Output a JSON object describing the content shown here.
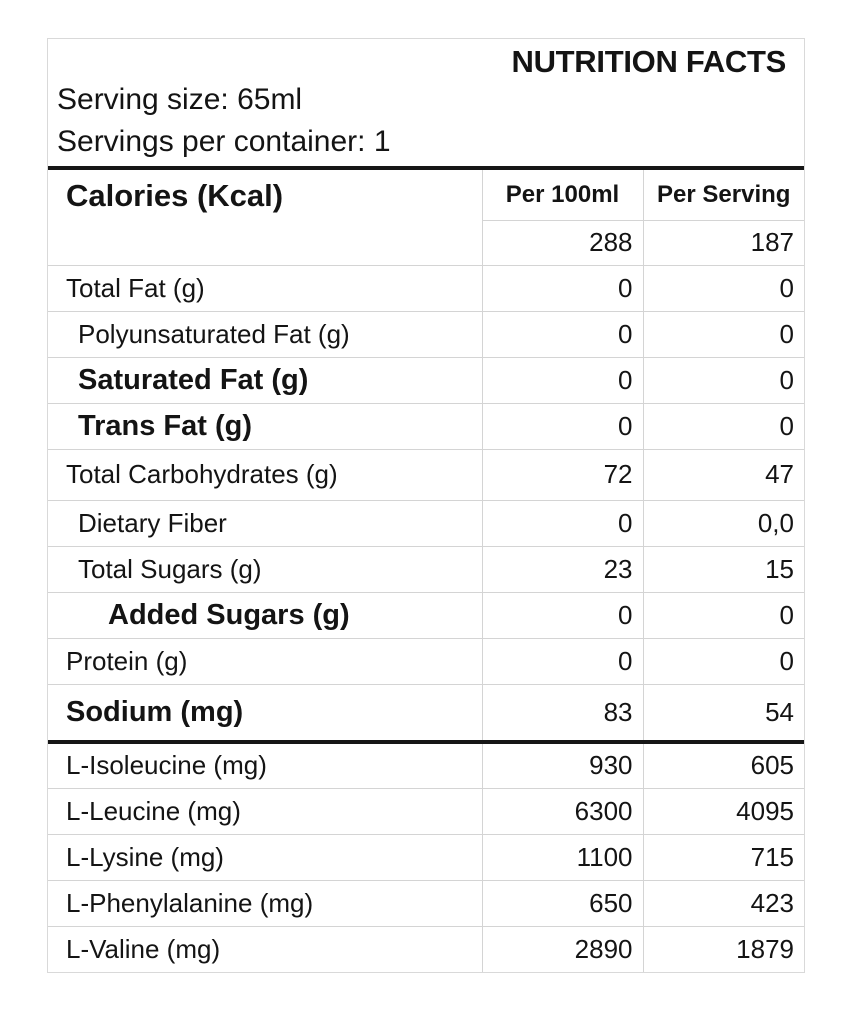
{
  "label_card": {
    "title": "NUTRITION FACTS",
    "serving_size": "Serving size: 65ml",
    "servings_per_container": "Servings per container: 1"
  },
  "table": {
    "calories": {
      "row_label": "Calories (Kcal)",
      "columns": [
        "Per 100ml",
        "Per Serving"
      ],
      "values": [
        "288",
        "187"
      ]
    },
    "rows": [
      {
        "label": "Total Fat (g)",
        "per_100ml": "0",
        "per_serving": "0",
        "style": "regular",
        "indent": 0
      },
      {
        "label": "Polyunsaturated Fat (g)",
        "per_100ml": "0",
        "per_serving": "0",
        "style": "regular",
        "indent": 1
      },
      {
        "label": "Saturated Fat (g)",
        "per_100ml": "0",
        "per_serving": "0",
        "style": "bold",
        "indent": 1
      },
      {
        "label": "Trans Fat (g)",
        "per_100ml": "0",
        "per_serving": "0",
        "style": "bold",
        "indent": 1
      },
      {
        "label": "Total Carbohydrates (g)",
        "per_100ml": "72",
        "per_serving": "47",
        "style": "regular",
        "indent": 0,
        "size": "tall"
      },
      {
        "label": "Dietary Fiber",
        "per_100ml": "0",
        "per_serving": "0,0",
        "style": "regular",
        "indent": 1
      },
      {
        "label": "Total Sugars (g)",
        "per_100ml": "23",
        "per_serving": "15",
        "style": "regular",
        "indent": 1
      },
      {
        "label": "Added Sugars (g)",
        "per_100ml": "0",
        "per_serving": "0",
        "style": "bold",
        "indent": 2
      },
      {
        "label": "Protein (g)",
        "per_100ml": "0",
        "per_serving": "0",
        "style": "regular",
        "indent": 0
      },
      {
        "label": "Sodium (mg)",
        "per_100ml": "83",
        "per_serving": "54",
        "style": "bold",
        "indent": 0,
        "size": "xtall",
        "section_end": true
      },
      {
        "label": "L-Isoleucine (mg)",
        "per_100ml": "930",
        "per_serving": "605",
        "style": "regular",
        "indent": 0
      },
      {
        "label": "L-Leucine (mg)",
        "per_100ml": "6300",
        "per_serving": "4095",
        "style": "regular",
        "indent": 0
      },
      {
        "label": "L-Lysine (mg)",
        "per_100ml": "1100",
        "per_serving": "715",
        "style": "regular",
        "indent": 0
      },
      {
        "label": "L-Phenylalanine (mg)",
        "per_100ml": "650",
        "per_serving": "423",
        "style": "regular",
        "indent": 0
      },
      {
        "label": "L-Valine (mg)",
        "per_100ml": "2890",
        "per_serving": "1879",
        "style": "regular",
        "indent": 0
      }
    ]
  },
  "colors": {
    "text": "#141414",
    "thick_rule": "#161616",
    "divider": "#d4d4d4",
    "card_border": "#d9d9d9",
    "background": "#ffffff"
  }
}
